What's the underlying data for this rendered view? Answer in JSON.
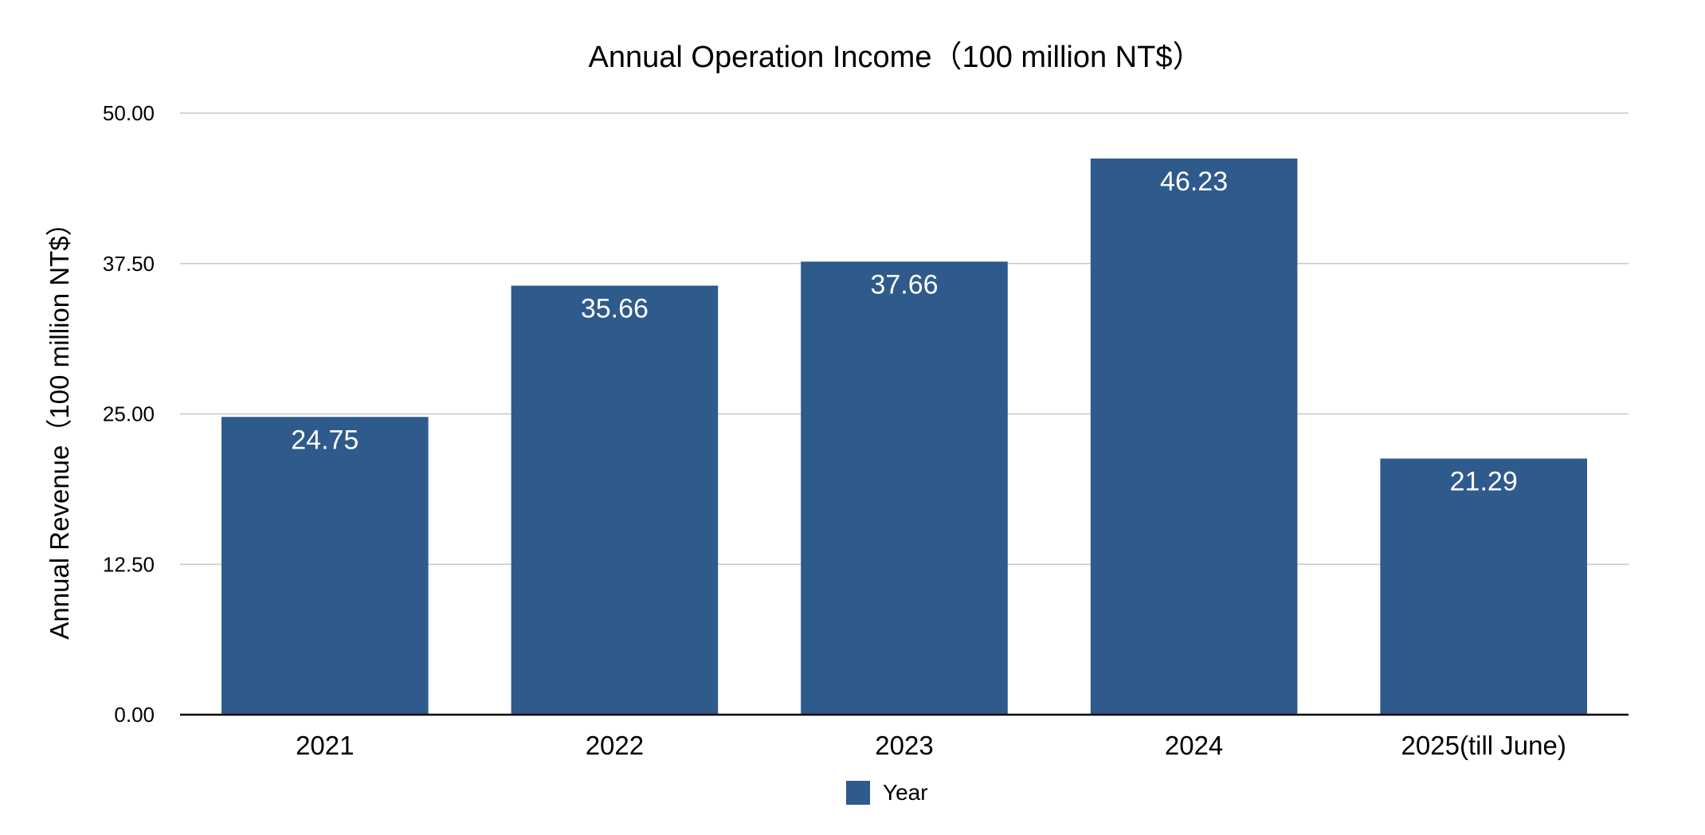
{
  "chart_data": {
    "type": "bar",
    "title": "Annual Operation Income（100 million NT$）",
    "xlabel": "",
    "ylabel": "Annual Revenue（100 million NT$）",
    "categories": [
      "2021",
      "2022",
      "2023",
      "2024",
      "2025(till June)"
    ],
    "series": [
      {
        "name": "Year",
        "values": [
          24.75,
          35.66,
          37.66,
          46.23,
          21.29
        ],
        "color": "#2e5a8c"
      }
    ],
    "ylim": [
      0,
      50
    ],
    "yticks": [
      0,
      12.5,
      25,
      37.5,
      50
    ],
    "ytick_labels": [
      "0.00",
      "12.50",
      "25.00",
      "37.50",
      "50.00"
    ],
    "data_labels": [
      "24.75",
      "35.66",
      "37.66",
      "46.23",
      "21.29"
    ],
    "grid": true,
    "legend": "bottom-center",
    "colors": {
      "bar": "#2e5a8c",
      "grid": "#c8c8c8",
      "axis": "#000000"
    }
  }
}
